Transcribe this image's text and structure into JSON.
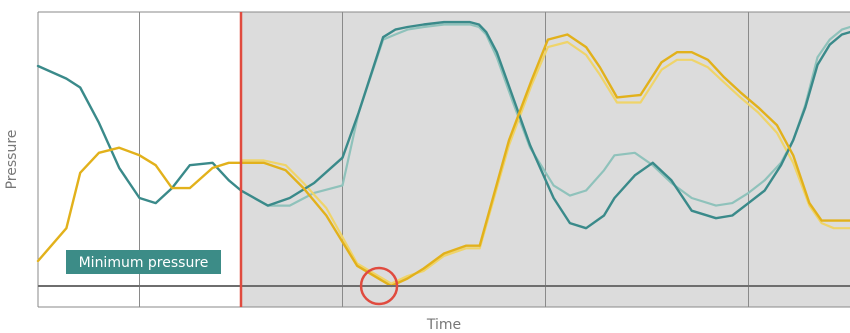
{
  "chart_data": {
    "type": "line",
    "title": "",
    "xlabel": "Time",
    "ylabel": "Pressure",
    "xlim": [
      0,
      100
    ],
    "ylim": [
      0,
      100
    ],
    "grid": true,
    "legend": "none",
    "annotations": {
      "box_label": "Minimum pressure",
      "marker_x": 25,
      "shaded_from_x": 25,
      "shaded_to_x": 100,
      "minimum_point": {
        "x": 42,
        "y": 0
      }
    },
    "colors": {
      "teal": "#3a8a8a",
      "teal_light": "#8fc2bb",
      "gold": "#e2b11b",
      "gold_light": "#efd46a",
      "marker": "#e04b3f",
      "shade": "#dcdcdc",
      "grid": "#8a8a8a",
      "label_box": "#3c8c87"
    },
    "series": [
      {
        "color": "teal",
        "x": [
          0,
          3.5,
          5.2,
          7.5,
          10,
          12.5,
          14.5,
          16.5,
          18.7,
          21.5,
          23.5,
          25,
          28.3,
          31,
          34,
          37.5,
          39.5,
          42.5,
          44,
          45.5,
          47.5,
          50,
          53.2,
          54.3,
          55.2,
          56.5,
          58.5,
          60.6,
          63.5,
          65.5,
          67.5,
          69.7,
          71,
          73.5,
          75.7,
          78,
          80.5,
          83.5,
          85.5,
          87.5,
          89.5,
          91.5,
          93,
          94.5,
          96,
          97.5,
          99,
          100
        ],
        "y": [
          81.8,
          77.1,
          73.8,
          60.7,
          43.9,
          32.7,
          30.8,
          36.4,
          44.9,
          45.8,
          39.3,
          35.5,
          29.9,
          32.7,
          38.3,
          47.7,
          64.5,
          92.5,
          95.3,
          96.3,
          97.2,
          98.1,
          98.1,
          97.2,
          94.4,
          86.9,
          70.1,
          52.3,
          32.7,
          23.4,
          21.5,
          26.2,
          32.7,
          41.1,
          45.8,
          39.3,
          28,
          25.2,
          26.2,
          30.8,
          35.5,
          44.9,
          54.2,
          66.4,
          82.2,
          89.7,
          93.5,
          94.4
        ]
      },
      {
        "color": "teal_light",
        "x": [
          25,
          28.3,
          31,
          34,
          37.5,
          39.5,
          42.5,
          44,
          45.5,
          47.5,
          50,
          53.2,
          54.3,
          55.2,
          56.5,
          58.5,
          60.6,
          63.5,
          65.5,
          67.5,
          69.7,
          71,
          73.5,
          75.7,
          78,
          80.5,
          83.5,
          85.5,
          87.5,
          89.5,
          91.5,
          93,
          94.5,
          96,
          97.5,
          99,
          100
        ],
        "y": [
          35.5,
          29.9,
          29.9,
          34.6,
          37.4,
          64.5,
          91.6,
          93.5,
          95.3,
          96.3,
          97.2,
          97.2,
          96.3,
          93.5,
          85,
          68.2,
          51.4,
          37.4,
          33.6,
          35.5,
          43,
          48.6,
          49.5,
          44.9,
          38.3,
          32.7,
          29.9,
          30.8,
          34.6,
          39.3,
          45.8,
          54.2,
          67.3,
          85,
          91.6,
          95.3,
          96.3
        ]
      },
      {
        "color": "gold",
        "x": [
          0,
          3.5,
          5.2,
          7.5,
          10,
          12.5,
          14.5,
          16.5,
          18.7,
          21.5,
          23.5,
          25,
          27.8,
          30.5,
          32.7,
          35.5,
          39.3,
          43.5,
          45.5,
          47.5,
          50,
          52.7,
          54.4,
          58,
          60.8,
          62.8,
          65.2,
          67.5,
          69.2,
          71.3,
          74.2,
          76.8,
          78.7,
          80.5,
          82.5,
          84.5,
          86.5,
          88.7,
          91,
          93,
          95,
          96.5,
          98,
          100
        ],
        "y": [
          9.3,
          21.5,
          42.1,
          49.5,
          51.4,
          48.6,
          44.9,
          36.4,
          36.4,
          43.9,
          45.8,
          45.8,
          45.8,
          43,
          36.4,
          26.2,
          7.5,
          0,
          2.8,
          6.5,
          12.1,
          15,
          15,
          54.2,
          76.6,
          91.6,
          93.5,
          88.8,
          81.3,
          70.1,
          71,
          83.2,
          86.9,
          86.9,
          84.1,
          77.6,
          72,
          66.4,
          59.8,
          48.6,
          30.8,
          24.3,
          24.3,
          24.3
        ]
      },
      {
        "color": "gold_light",
        "x": [
          25,
          27.8,
          30.5,
          32.7,
          35.5,
          39.3,
          43.5,
          45.5,
          47.5,
          50,
          52.7,
          54.4,
          58,
          60.8,
          62.8,
          65.2,
          67.5,
          69.2,
          71.3,
          74.2,
          76.8,
          78.7,
          80.5,
          82.5,
          84.5,
          86.5,
          88.7,
          91,
          93,
          95,
          96.5,
          98,
          100
        ],
        "y": [
          46.7,
          46.7,
          44.9,
          38.3,
          29,
          8.4,
          0.9,
          3.7,
          5.6,
          11.2,
          14,
          14,
          52.3,
          74.8,
          88.8,
          90.7,
          85.9,
          78.5,
          68.2,
          68.2,
          80.4,
          84.1,
          84.1,
          81.3,
          75.7,
          70.1,
          64.5,
          57,
          45.8,
          29.9,
          23.4,
          21.5,
          21.5
        ]
      }
    ]
  }
}
